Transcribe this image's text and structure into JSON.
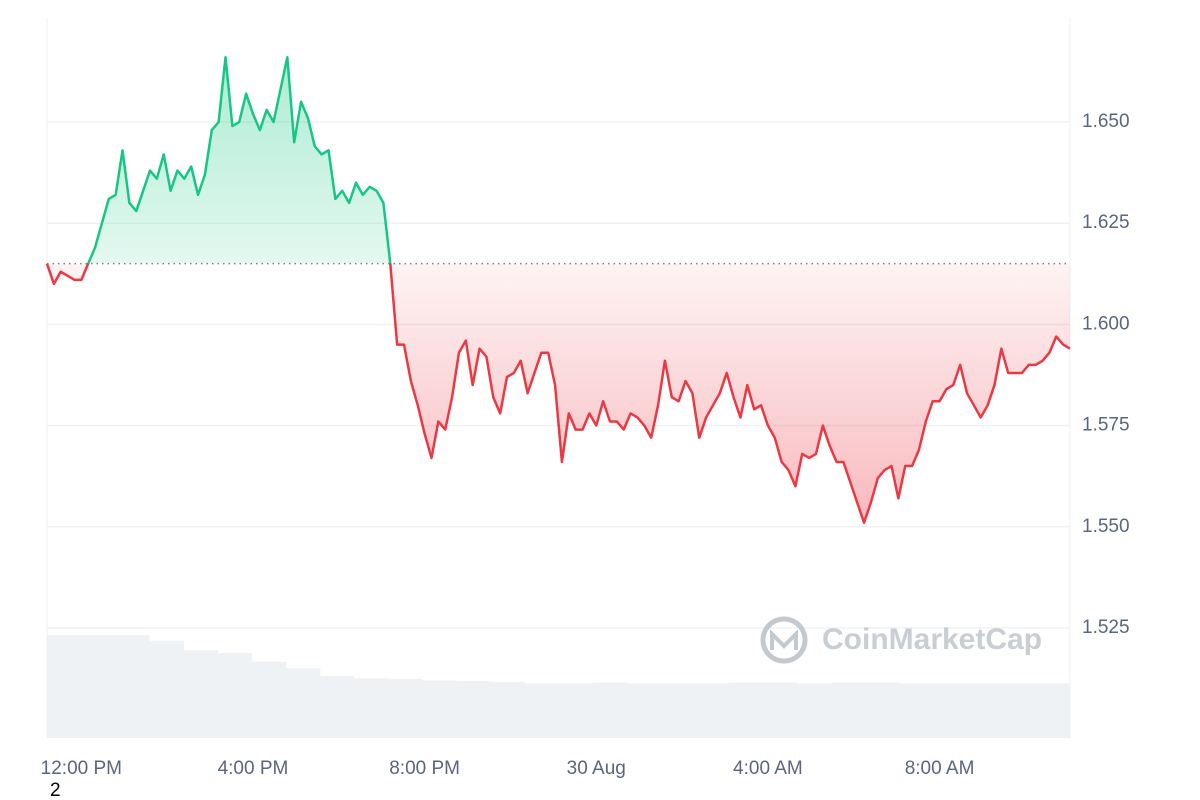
{
  "chart_data": {
    "type": "line",
    "values": [
      1.615,
      1.61,
      1.613,
      1.612,
      1.611,
      1.611,
      1.615,
      1.619,
      1.625,
      1.631,
      1.632,
      1.643,
      1.63,
      1.628,
      1.633,
      1.638,
      1.636,
      1.642,
      1.633,
      1.638,
      1.636,
      1.639,
      1.632,
      1.637,
      1.648,
      1.65,
      1.666,
      1.649,
      1.65,
      1.657,
      1.652,
      1.648,
      1.653,
      1.65,
      1.658,
      1.666,
      1.645,
      1.655,
      1.651,
      1.644,
      1.642,
      1.643,
      1.631,
      1.633,
      1.63,
      1.635,
      1.632,
      1.634,
      1.633,
      1.63,
      1.615,
      1.595,
      1.595,
      1.586,
      1.58,
      1.573,
      1.567,
      1.576,
      1.574,
      1.582,
      1.593,
      1.596,
      1.585,
      1.594,
      1.592,
      1.582,
      1.578,
      1.587,
      1.588,
      1.591,
      1.583,
      1.588,
      1.593,
      1.593,
      1.585,
      1.566,
      1.578,
      1.574,
      1.574,
      1.578,
      1.575,
      1.581,
      1.576,
      1.576,
      1.574,
      1.578,
      1.577,
      1.575,
      1.572,
      1.58,
      1.591,
      1.582,
      1.581,
      1.586,
      1.583,
      1.572,
      1.577,
      1.58,
      1.583,
      1.588,
      1.582,
      1.577,
      1.585,
      1.579,
      1.58,
      1.575,
      1.572,
      1.566,
      1.564,
      1.56,
      1.568,
      1.567,
      1.568,
      1.575,
      1.57,
      1.566,
      1.566,
      1.561,
      1.556,
      1.551,
      1.556,
      1.562,
      1.564,
      1.565,
      1.557,
      1.565,
      1.565,
      1.569,
      1.576,
      1.581,
      1.581,
      1.584,
      1.585,
      1.59,
      1.583,
      1.58,
      1.577,
      1.58,
      1.585,
      1.594,
      1.588,
      1.588,
      1.588,
      1.59,
      1.59,
      1.591,
      1.593,
      1.597,
      1.595,
      1.594
    ],
    "reference_value": 1.615,
    "up_color": "#16c784",
    "down_color": "#ea3943",
    "xlim": [
      0,
      149
    ],
    "xticks": [
      {
        "value": 5,
        "label": "12:00 PM"
      },
      {
        "value": 30,
        "label": "4:00 PM"
      },
      {
        "value": 55,
        "label": "8:00 PM"
      },
      {
        "value": 80,
        "label": "30 Aug"
      },
      {
        "value": 105,
        "label": "4:00 AM"
      },
      {
        "value": 130,
        "label": "8:00 AM"
      }
    ],
    "ylim": [
      1.4978,
      1.6757
    ],
    "yticks": [
      1.525,
      {
        "value": 1.55,
        "label": "1.550"
      },
      1.575,
      {
        "value": 1.6,
        "label": "1.600"
      },
      1.625,
      {
        "value": 1.65,
        "label": "1.650"
      }
    ],
    "grid": true,
    "volume": {
      "color": "#eff2f5",
      "ylim": [
        0,
        100
      ],
      "values": [
        14.3,
        14.3,
        14.3,
        13.5,
        12.2,
        11.8,
        10.6,
        9.7,
        8.6,
        8.3,
        8.2,
        8.0,
        7.9,
        7.8,
        7.6,
        7.6,
        7.7,
        7.6,
        7.6,
        7.6,
        7.7,
        7.7,
        7.6,
        7.7,
        7.7,
        7.6,
        7.6,
        7.6,
        7.6,
        7.6
      ]
    },
    "watermark": "CoinMarketCap",
    "footnote": "2"
  }
}
